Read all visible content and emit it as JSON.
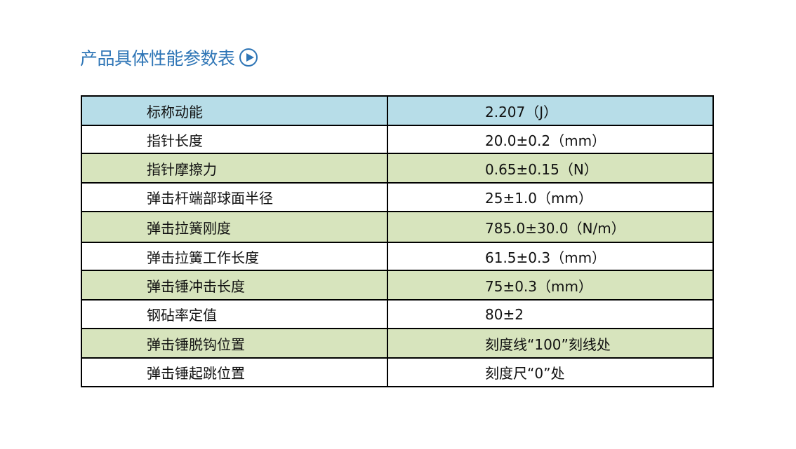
{
  "title": "产品具体性能参数表",
  "title_icon": "play-circle-icon",
  "colors": {
    "title": "#2e75b6",
    "header_row": "#b7dde8",
    "alt_row": "#d7e4bd"
  },
  "rows": [
    {
      "name": "标称动能",
      "value": "2.207（J）"
    },
    {
      "name": "指针长度",
      "value": "20.0±0.2（mm）"
    },
    {
      "name": "指针摩擦力",
      "value": "0.65±0.15（N）"
    },
    {
      "name": "弹击杆端部球面半径",
      "value": "25±1.0（mm）"
    },
    {
      "name": "弹击拉簧刚度",
      "value": "785.0±30.0（N/m）"
    },
    {
      "name": "弹击拉簧工作长度",
      "value": "61.5±0.3（mm）"
    },
    {
      "name": "弹击锤冲击长度",
      "value": "75±0.3（mm）"
    },
    {
      "name": "钢砧率定值",
      "value": "80±2"
    },
    {
      "name": "弹击锤脱钩位置",
      "value": "刻度线“100”刻线处"
    },
    {
      "name": "弹击锤起跳位置",
      "value": "刻度尺“0”处"
    }
  ]
}
